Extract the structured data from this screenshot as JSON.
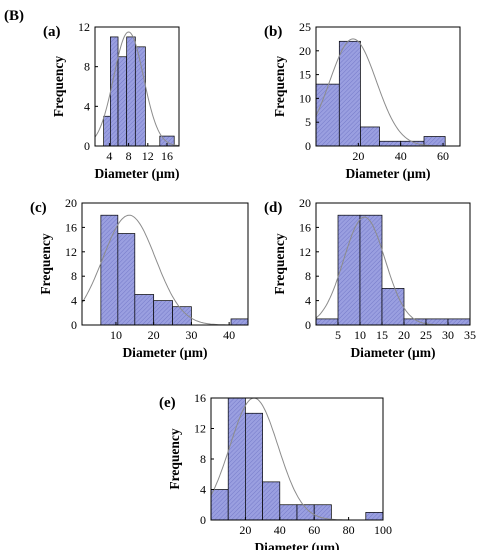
{
  "figure_label": "(B)",
  "chart_data": [
    {
      "type": "bar",
      "panel": "(a)",
      "xlabel": "Diameter (µm)",
      "ylabel": "Frequency",
      "xlim": [
        1,
        18.5
      ],
      "ylim": [
        0,
        12
      ],
      "xticks": [
        4,
        8,
        12,
        16
      ],
      "yticks": [
        0,
        4,
        8,
        12
      ],
      "bins": [
        {
          "x0": 2.8,
          "x1": 4.2,
          "value": 3
        },
        {
          "x0": 4.2,
          "x1": 5.8,
          "value": 11
        },
        {
          "x0": 5.8,
          "x1": 7.6,
          "value": 9
        },
        {
          "x0": 7.6,
          "x1": 9.4,
          "value": 11
        },
        {
          "x0": 9.4,
          "x1": 11.5,
          "value": 10
        },
        {
          "x0": 14.5,
          "x1": 17.5,
          "value": 1
        }
      ],
      "fit": {
        "mean": 8.0,
        "sd": 3.1,
        "peak": 11.5
      }
    },
    {
      "type": "bar",
      "panel": "(b)",
      "xlabel": "Diameter (µm)",
      "ylabel": "Frequency",
      "xlim": [
        0,
        68
      ],
      "ylim": [
        0,
        25
      ],
      "xticks": [
        20,
        40,
        60
      ],
      "yticks": [
        0,
        5,
        10,
        15,
        20,
        25
      ],
      "bins": [
        {
          "x0": 0,
          "x1": 11,
          "value": 13
        },
        {
          "x0": 11,
          "x1": 21,
          "value": 22
        },
        {
          "x0": 21,
          "x1": 30,
          "value": 4
        },
        {
          "x0": 30,
          "x1": 40,
          "value": 1
        },
        {
          "x0": 40,
          "x1": 51,
          "value": 1
        },
        {
          "x0": 51,
          "x1": 61,
          "value": 2
        }
      ],
      "fit": {
        "mean": 17.5,
        "sd": 11.0,
        "peak": 22.5
      }
    },
    {
      "type": "bar",
      "panel": "(c)",
      "xlabel": "Diameter (µm)",
      "ylabel": "Frequency",
      "xlim": [
        1,
        45
      ],
      "ylim": [
        0,
        20
      ],
      "xticks": [
        10,
        20,
        30,
        40
      ],
      "yticks": [
        0,
        4,
        8,
        12,
        16,
        20
      ],
      "bins": [
        {
          "x0": 6,
          "x1": 10.5,
          "value": 18
        },
        {
          "x0": 10.5,
          "x1": 15,
          "value": 15
        },
        {
          "x0": 15,
          "x1": 20,
          "value": 5
        },
        {
          "x0": 20,
          "x1": 25,
          "value": 4
        },
        {
          "x0": 25,
          "x1": 30,
          "value": 3
        },
        {
          "x0": 40.5,
          "x1": 45,
          "value": 1
        }
      ],
      "fit": {
        "mean": 13.5,
        "sd": 7.0,
        "peak": 18.0
      }
    },
    {
      "type": "bar",
      "panel": "(d)",
      "xlabel": "Diameter (µm)",
      "ylabel": "Frequency",
      "xlim": [
        0,
        35
      ],
      "ylim": [
        0,
        20
      ],
      "xticks": [
        5,
        10,
        15,
        20,
        25,
        30,
        35
      ],
      "yticks": [
        0,
        4,
        8,
        12,
        16,
        20
      ],
      "bins": [
        {
          "x0": 0,
          "x1": 5,
          "value": 1
        },
        {
          "x0": 5,
          "x1": 10,
          "value": 18
        },
        {
          "x0": 10,
          "x1": 15,
          "value": 18
        },
        {
          "x0": 15,
          "x1": 20,
          "value": 6
        },
        {
          "x0": 20,
          "x1": 25,
          "value": 1
        },
        {
          "x0": 25,
          "x1": 30,
          "value": 1
        },
        {
          "x0": 30,
          "x1": 35,
          "value": 1
        }
      ],
      "fit": {
        "mean": 11.0,
        "sd": 4.7,
        "peak": 17.7
      }
    },
    {
      "type": "bar",
      "panel": "(e)",
      "xlabel": "Diameter (µm)",
      "ylabel": "Frequency",
      "xlim": [
        0,
        100
      ],
      "ylim": [
        0,
        16
      ],
      "xticks": [
        20,
        40,
        60,
        80,
        100
      ],
      "yticks": [
        0,
        4,
        8,
        12,
        16
      ],
      "bins": [
        {
          "x0": 0,
          "x1": 10,
          "value": 4
        },
        {
          "x0": 10,
          "x1": 20,
          "value": 16
        },
        {
          "x0": 20,
          "x1": 30,
          "value": 14
        },
        {
          "x0": 30,
          "x1": 40,
          "value": 5
        },
        {
          "x0": 40,
          "x1": 50,
          "value": 2
        },
        {
          "x0": 50,
          "x1": 60,
          "value": 2
        },
        {
          "x0": 60,
          "x1": 70,
          "value": 2
        },
        {
          "x0": 90,
          "x1": 100,
          "value": 1
        }
      ],
      "fit": {
        "mean": 25.0,
        "sd": 14.0,
        "peak": 16.0
      }
    }
  ]
}
